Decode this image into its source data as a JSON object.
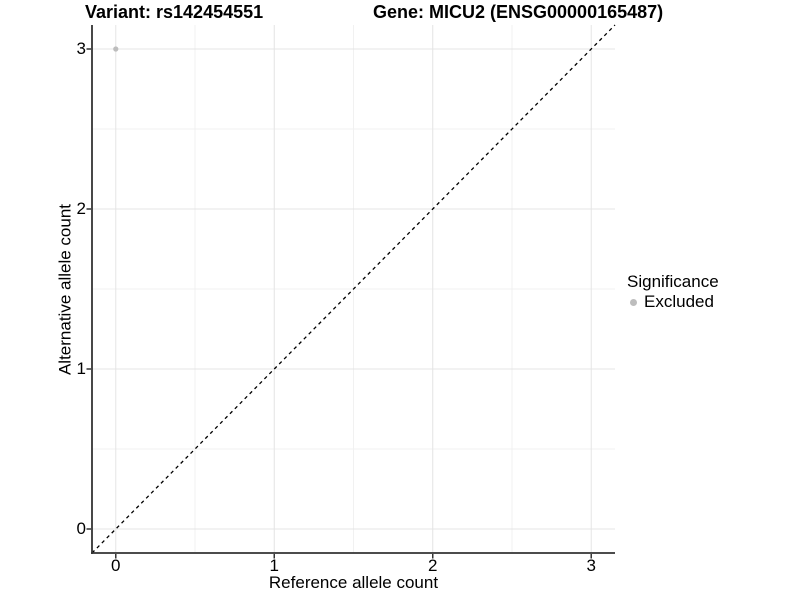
{
  "title": {
    "variant": "Variant: rs142454551",
    "gene": "Gene: MICU2 (ENSG00000165487)"
  },
  "axes": {
    "xlabel": "Reference allele count",
    "ylabel": "Alternative allele count"
  },
  "legend": {
    "title": "Significance",
    "items": [
      {
        "label": "Excluded",
        "color": "#bdbdbd"
      }
    ]
  },
  "colors": {
    "background": "#ffffff",
    "text": "#000000",
    "axis_line": "#333333",
    "tick_mark": "#333333",
    "grid_major": "#e4e4e4",
    "grid_minor": "#f1f1f1",
    "dashed_line": "#000000",
    "point": "#bdbdbd"
  },
  "chart_data": {
    "type": "scatter",
    "title": "Variant: rs142454551    Gene: MICU2 (ENSG00000165487)",
    "xlabel": "Reference allele count",
    "ylabel": "Alternative allele count",
    "xlim": [
      -0.15,
      3.15
    ],
    "ylim": [
      -0.15,
      3.15
    ],
    "xticks": [
      0,
      1,
      2,
      3
    ],
    "yticks": [
      0,
      1,
      2,
      3
    ],
    "minor_ticks": [
      0.5,
      1.5,
      2.5
    ],
    "grid": "major+minor",
    "legend_position": "right",
    "series": [
      {
        "name": "Excluded",
        "color": "#bdbdbd",
        "points": [
          {
            "x": 0,
            "y": 3
          }
        ]
      }
    ],
    "reference_line": {
      "type": "identity-diagonal",
      "style": "dashed",
      "from": [
        -0.15,
        -0.15
      ],
      "to": [
        3.15,
        3.15
      ],
      "color": "#000000"
    }
  }
}
